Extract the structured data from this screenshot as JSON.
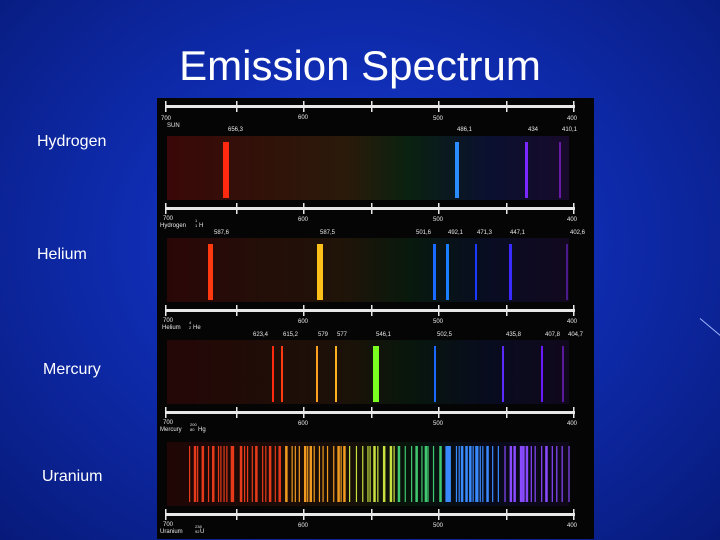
{
  "title": "Emission Spectrum",
  "element_labels": [
    "Hydrogen",
    "Helium",
    "Mercury",
    "Uranium"
  ],
  "colors": {
    "background": "#0f2cb0",
    "panel": "#050505",
    "scale": "#e8e8e8"
  },
  "panel": {
    "top_axis": {
      "ticks": [
        "700",
        "600",
        "500",
        "400"
      ],
      "name": "SUN"
    },
    "sun_lines": [
      "656,3",
      "486,1",
      "434",
      "410,1"
    ],
    "axis_hydrogen": {
      "ticks": [
        "700",
        "600",
        "500",
        "400"
      ],
      "name": "Hydrogen",
      "symbol": "H",
      "mass": "1",
      "number": "1"
    },
    "hydrogen_lines": [
      "587,6",
      "587,5",
      "501,6",
      "492,1",
      "471,3",
      "447,1",
      "402,6"
    ],
    "axis_helium": {
      "ticks": [
        "700",
        "600",
        "500",
        "400"
      ],
      "name": "Helium",
      "symbol": "He",
      "mass": "4",
      "number": "2"
    },
    "helium_lines": [
      "623,4",
      "615,2",
      "579",
      "577",
      "546,1",
      "502,5",
      "435,8",
      "407,8",
      "404,7"
    ],
    "axis_mercury": {
      "ticks": [
        "700",
        "600",
        "500",
        "400"
      ],
      "name": "Mercury",
      "symbol": "Hg",
      "mass": "200",
      "number": "80"
    },
    "axis_uranium": {
      "ticks": [
        "700",
        "600",
        "500",
        "400"
      ],
      "name": "Uranium",
      "symbol": "U",
      "mass": "238",
      "number": "92"
    }
  }
}
